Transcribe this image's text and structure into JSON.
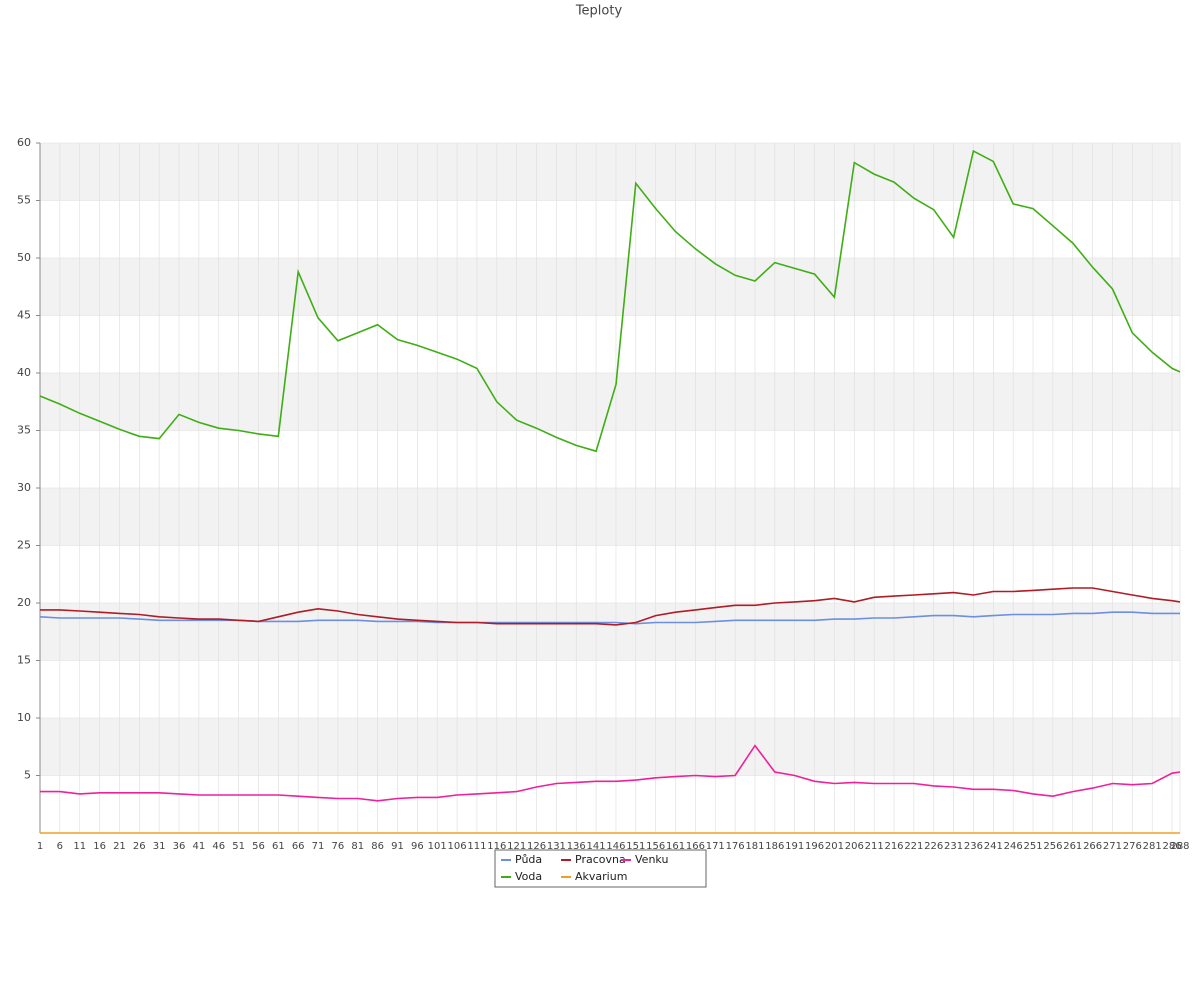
{
  "chart_data": {
    "type": "line",
    "title": "Teploty",
    "x": [
      1,
      6,
      11,
      16,
      21,
      26,
      31,
      36,
      41,
      46,
      51,
      56,
      61,
      66,
      71,
      76,
      81,
      86,
      91,
      96,
      101,
      106,
      111,
      116,
      121,
      126,
      131,
      136,
      141,
      146,
      151,
      156,
      161,
      166,
      171,
      176,
      181,
      186,
      191,
      196,
      201,
      206,
      211,
      216,
      221,
      226,
      231,
      236,
      241,
      246,
      251,
      256,
      261,
      266,
      271,
      276,
      281,
      286,
      288
    ],
    "xlim": [
      1,
      288
    ],
    "ylim": [
      0,
      60
    ],
    "yticks": [
      5,
      10,
      15,
      20,
      25,
      30,
      35,
      40,
      45,
      50,
      55,
      60
    ],
    "grid": true,
    "series": [
      {
        "name": "Půda",
        "color": "#6d8fe0",
        "values": [
          18.8,
          18.7,
          18.7,
          18.7,
          18.7,
          18.6,
          18.5,
          18.5,
          18.5,
          18.5,
          18.5,
          18.4,
          18.4,
          18.4,
          18.5,
          18.5,
          18.5,
          18.4,
          18.4,
          18.4,
          18.3,
          18.3,
          18.3,
          18.3,
          18.3,
          18.3,
          18.3,
          18.3,
          18.3,
          18.3,
          18.2,
          18.3,
          18.3,
          18.3,
          18.4,
          18.5,
          18.5,
          18.5,
          18.5,
          18.5,
          18.6,
          18.6,
          18.7,
          18.7,
          18.8,
          18.9,
          18.9,
          18.8,
          18.9,
          19.0,
          19.0,
          19.0,
          19.1,
          19.1,
          19.2,
          19.2,
          19.1,
          19.1,
          19.1
        ]
      },
      {
        "name": "Voda",
        "color": "#3fae14",
        "values": [
          38.0,
          37.3,
          36.5,
          35.8,
          35.1,
          34.5,
          34.3,
          36.4,
          35.7,
          35.2,
          35.0,
          34.7,
          34.5,
          48.8,
          44.8,
          42.8,
          43.5,
          44.2,
          42.9,
          42.4,
          41.8,
          41.2,
          40.4,
          37.5,
          35.9,
          35.2,
          34.4,
          33.7,
          33.2,
          39.0,
          56.5,
          54.3,
          52.3,
          50.8,
          49.5,
          48.5,
          48.0,
          49.6,
          49.1,
          48.6,
          46.6,
          58.3,
          57.3,
          56.6,
          55.2,
          54.2,
          51.8,
          59.3,
          58.4,
          54.7,
          54.3,
          52.8,
          51.3,
          49.2,
          47.3,
          43.5,
          41.8,
          40.4,
          40.1
        ]
      },
      {
        "name": "Pracovna",
        "color": "#b01c26",
        "values": [
          19.4,
          19.4,
          19.3,
          19.2,
          19.1,
          19.0,
          18.8,
          18.7,
          18.6,
          18.6,
          18.5,
          18.4,
          18.8,
          19.2,
          19.5,
          19.3,
          19.0,
          18.8,
          18.6,
          18.5,
          18.4,
          18.3,
          18.3,
          18.2,
          18.2,
          18.2,
          18.2,
          18.2,
          18.2,
          18.1,
          18.3,
          18.9,
          19.2,
          19.4,
          19.6,
          19.8,
          19.8,
          20.0,
          20.1,
          20.2,
          20.4,
          20.1,
          20.5,
          20.6,
          20.7,
          20.8,
          20.9,
          20.7,
          21.0,
          21.0,
          21.1,
          21.2,
          21.3,
          21.3,
          21.0,
          20.7,
          20.4,
          20.2,
          20.1
        ]
      },
      {
        "name": "Akvarium",
        "color": "#f0a020",
        "values": [
          0,
          0,
          0,
          0,
          0,
          0,
          0,
          0,
          0,
          0,
          0,
          0,
          0,
          0,
          0,
          0,
          0,
          0,
          0,
          0,
          0,
          0,
          0,
          0,
          0,
          0,
          0,
          0,
          0,
          0,
          0,
          0,
          0,
          0,
          0,
          0,
          0,
          0,
          0,
          0,
          0,
          0,
          0,
          0,
          0,
          0,
          0,
          0,
          0,
          0,
          0,
          0,
          0,
          0,
          0,
          0,
          0,
          0,
          0
        ]
      },
      {
        "name": "Venku",
        "color": "#f0209a",
        "values": [
          3.6,
          3.6,
          3.4,
          3.5,
          3.5,
          3.5,
          3.5,
          3.4,
          3.3,
          3.3,
          3.3,
          3.3,
          3.3,
          3.2,
          3.1,
          3.0,
          3.0,
          2.8,
          3.0,
          3.1,
          3.1,
          3.3,
          3.4,
          3.5,
          3.6,
          4.0,
          4.3,
          4.4,
          4.5,
          4.5,
          4.6,
          4.8,
          4.9,
          5.0,
          4.9,
          5.0,
          7.6,
          5.3,
          5.0,
          4.5,
          4.3,
          4.4,
          4.3,
          4.3,
          4.3,
          4.1,
          4.0,
          3.8,
          3.8,
          3.7,
          3.4,
          3.2,
          3.6,
          3.9,
          4.3,
          4.2,
          4.3,
          5.2,
          5.3
        ]
      }
    ]
  }
}
